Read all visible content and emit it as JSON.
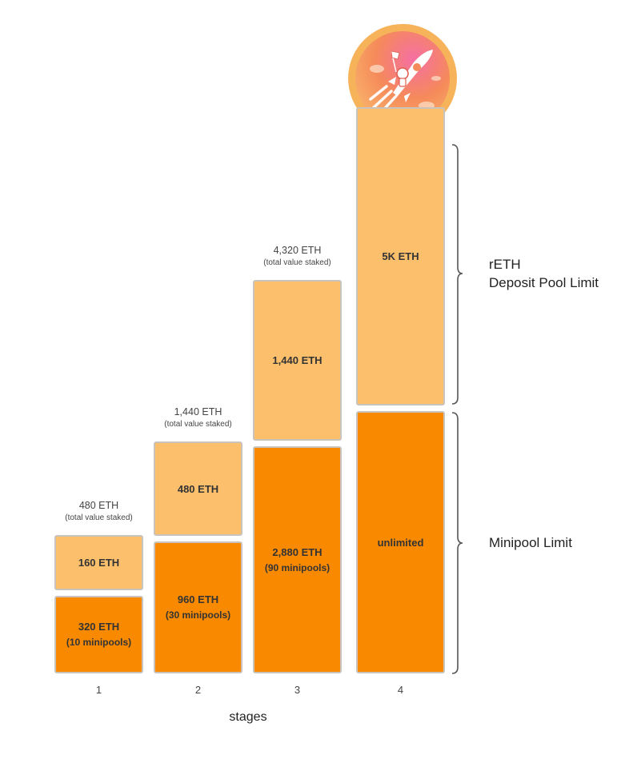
{
  "colors": {
    "deposit": "#fcc06c",
    "minipool": "#f98a00",
    "border": "#c9c3bc",
    "logo_ring": "#f6b35a",
    "logo_inner": "#f47f5c"
  },
  "logo": {
    "icon": "rocket-astronaut-icon"
  },
  "chart_data": {
    "type": "bar",
    "stacked": true,
    "categories": [
      "1",
      "2",
      "3",
      "4"
    ],
    "xlabel": "stages",
    "series": [
      {
        "name": "Minipool Limit",
        "values": [
          320,
          960,
          2880,
          null
        ],
        "labels": [
          "320 ETH",
          "960 ETH",
          "2,880 ETH",
          "unlimited"
        ],
        "sublabels": [
          "(10 minipools)",
          "(30 minipools)",
          "(90 minipools)",
          ""
        ]
      },
      {
        "name": "rETH Deposit Pool Limit",
        "name_lines": [
          "rETH",
          "Deposit Pool Limit"
        ],
        "values": [
          160,
          480,
          1440,
          5000
        ],
        "labels": [
          "160 ETH",
          "480 ETH",
          "1,440 ETH",
          "5K ETH"
        ]
      }
    ],
    "totals": [
      {
        "label": "480 ETH",
        "note": "(total value staked)"
      },
      {
        "label": "1,440 ETH",
        "note": "(total value staked)"
      },
      {
        "label": "4,320 ETH",
        "note": "(total value staked)"
      },
      null
    ]
  }
}
